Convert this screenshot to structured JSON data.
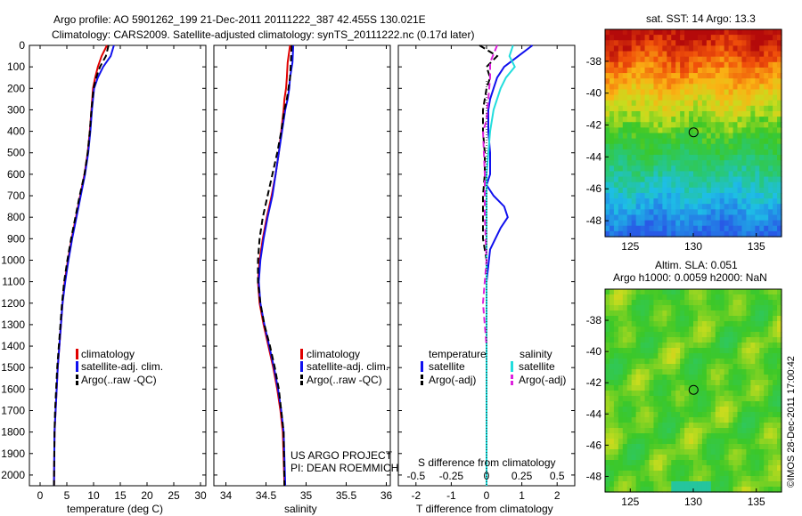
{
  "header": {
    "line1": "Argo profile: AO 5901262_199 21-Dec-2011 20111222_387 42.455S 130.021E",
    "line2": "Climatology: CARS2009. Satellite-adjusted climatology: synTS_20111222.nc (0.17d later)"
  },
  "colors": {
    "climatology": "#e00000",
    "satellite": "#1010ee",
    "argo": "#000000",
    "sal_satellite": "#22dddd",
    "sal_argo": "#dd22dd"
  },
  "y_axis": {
    "ylim": [
      0,
      2050
    ],
    "ticks": [
      0,
      100,
      200,
      300,
      400,
      500,
      600,
      700,
      800,
      900,
      1000,
      1100,
      1200,
      1300,
      1400,
      1500,
      1600,
      1700,
      1800,
      1900,
      2000
    ]
  },
  "panel1": {
    "xlabel": "temperature (deg C)",
    "xlim": [
      -2,
      31
    ],
    "xticks": [
      0,
      5,
      10,
      15,
      20,
      25,
      30
    ],
    "legend": [
      "climatology",
      "satellite-adj. clim.",
      "Argo(..raw -QC)"
    ]
  },
  "panel2": {
    "xlabel": "salinity",
    "xlim": [
      33.85,
      36.05
    ],
    "xticks": [
      "34",
      "34.5",
      "35",
      "35.5",
      "36"
    ],
    "legend": [
      "climatology",
      "satellite-adj. clim.",
      "Argo(..raw -QC)"
    ],
    "note1": "US ARGO PROJECT",
    "note2": "PI: DEAN ROEMMICH"
  },
  "panel3": {
    "xlabel": "T difference from climatology",
    "xlim": [
      -2.5,
      2.5
    ],
    "xticks": [
      "-2",
      "-1",
      "0",
      "1",
      "2"
    ],
    "top_label": "S difference from climatology",
    "top_ticks": [
      "-0.5",
      "-0.25",
      "0",
      "0.25",
      "0.5"
    ],
    "legend_temp_title": "temperature",
    "legend_sal_title": "salinity",
    "legend_temp": [
      "satellite",
      "Argo(-adj)"
    ],
    "legend_sal": [
      "satellite",
      "Argo(-adj)"
    ]
  },
  "map1": {
    "title": "sat. SST: 14 Argo: 13.3",
    "yticks": [
      "-38",
      "-40",
      "-42",
      "-44",
      "-46",
      "-48"
    ],
    "xticks": [
      "125",
      "130",
      "135"
    ],
    "marker": {
      "lon": 130.021,
      "lat": -42.455
    },
    "lon_range": [
      123,
      137
    ],
    "lat_range": [
      -49,
      -36
    ]
  },
  "map2": {
    "title1": "Altim. SLA: 0.051",
    "title2": "Argo h1000: 0.0059 h2000: NaN",
    "yticks": [
      "-38",
      "-40",
      "-42",
      "-44",
      "-46",
      "-48"
    ],
    "xticks": [
      "125",
      "130",
      "135"
    ],
    "marker": {
      "lon": 130.021,
      "lat": -42.455
    },
    "lon_range": [
      123,
      137
    ],
    "lat_range": [
      -49,
      -36
    ]
  },
  "stamp": "©IMOS 28-Dec-2011 17:00:42",
  "chart_data": [
    {
      "type": "line",
      "title": "",
      "xlabel": "temperature (deg C)",
      "ylabel": "",
      "xlim": [
        -2,
        31
      ],
      "ylim": [
        0,
        2050
      ],
      "series": [
        {
          "name": "climatology",
          "x": [
            12.5,
            11.5,
            10.8,
            10.3,
            9.9,
            9.6,
            9.3,
            8.9,
            8.3,
            7.5,
            6.7,
            5.9,
            5.2,
            4.6,
            4.2,
            3.9,
            3.6,
            3.3,
            3.1,
            2.9,
            2.7,
            2.6
          ],
          "y": [
            0,
            50,
            100,
            150,
            200,
            300,
            400,
            500,
            600,
            700,
            800,
            900,
            1000,
            1100,
            1200,
            1300,
            1400,
            1500,
            1600,
            1700,
            1800,
            2050
          ]
        },
        {
          "name": "satellite-adj. clim.",
          "x": [
            13.8,
            13.2,
            11.8,
            10.8,
            10.1,
            9.7,
            9.4,
            9.0,
            8.4,
            7.6,
            6.8,
            6.0,
            5.3,
            4.7,
            4.2,
            3.9,
            3.6,
            3.3,
            3.1,
            2.9,
            2.7,
            2.6
          ],
          "y": [
            0,
            50,
            100,
            150,
            200,
            300,
            400,
            500,
            600,
            700,
            800,
            900,
            1000,
            1100,
            1200,
            1300,
            1400,
            1500,
            1600,
            1700,
            1800,
            2050
          ]
        },
        {
          "name": "Argo(..raw -QC)",
          "x": [
            12.8,
            12.3,
            11.2,
            10.5,
            10.0,
            9.6,
            9.3,
            8.9,
            8.3,
            7.4,
            6.6,
            5.8,
            5.1,
            4.5,
            4.1,
            3.8,
            3.5,
            3.2,
            3.0,
            2.8,
            2.7,
            2.6
          ],
          "y": [
            0,
            50,
            100,
            150,
            200,
            300,
            400,
            500,
            600,
            700,
            800,
            900,
            1000,
            1100,
            1200,
            1300,
            1400,
            1500,
            1600,
            1700,
            1800,
            2050
          ]
        }
      ]
    },
    {
      "type": "line",
      "title": "",
      "xlabel": "salinity",
      "ylabel": "",
      "xlim": [
        33.85,
        36.05
      ],
      "ylim": [
        0,
        2050
      ],
      "series": [
        {
          "name": "climatology",
          "x": [
            34.8,
            34.77,
            34.76,
            34.75,
            34.73,
            34.72,
            34.69,
            34.66,
            34.62,
            34.57,
            34.51,
            34.46,
            34.42,
            34.4,
            34.42,
            34.47,
            34.53,
            34.59,
            34.64,
            34.68,
            34.71,
            34.73
          ],
          "y": [
            0,
            80,
            150,
            200,
            250,
            300,
            400,
            500,
            600,
            700,
            800,
            900,
            1000,
            1100,
            1200,
            1300,
            1400,
            1500,
            1600,
            1700,
            1800,
            2050
          ]
        },
        {
          "name": "satellite-adj. clim.",
          "x": [
            34.84,
            34.83,
            34.8,
            34.79,
            34.77,
            34.74,
            34.7,
            34.66,
            34.62,
            34.58,
            34.52,
            34.47,
            34.43,
            34.41,
            34.43,
            34.48,
            34.54,
            34.6,
            34.65,
            34.69,
            34.72,
            34.74
          ],
          "y": [
            0,
            80,
            150,
            200,
            250,
            300,
            400,
            500,
            600,
            700,
            800,
            900,
            1000,
            1100,
            1200,
            1300,
            1400,
            1500,
            1600,
            1700,
            1800,
            2050
          ]
        },
        {
          "name": "Argo(..raw -QC)",
          "x": [
            34.82,
            34.81,
            34.8,
            34.78,
            34.76,
            34.73,
            34.69,
            34.64,
            34.58,
            34.52,
            34.46,
            34.42,
            34.4,
            34.4,
            34.43,
            34.48,
            34.55,
            34.61,
            34.66,
            34.69,
            34.72,
            34.73
          ],
          "y": [
            0,
            80,
            150,
            200,
            250,
            300,
            400,
            500,
            600,
            700,
            800,
            900,
            1000,
            1100,
            1200,
            1300,
            1400,
            1500,
            1600,
            1700,
            1800,
            2050
          ]
        }
      ]
    },
    {
      "type": "line",
      "title": "",
      "xlabel": "T difference from climatology",
      "ylabel": "",
      "xlim": [
        -2.5,
        2.5
      ],
      "ylim": [
        0,
        2050
      ],
      "series": [
        {
          "name": "satellite",
          "x": [
            1.3,
            0.9,
            0.5,
            0.3,
            0.2,
            0.1,
            0.05,
            0.05,
            0.1,
            0.1,
            0.0,
            0.2,
            0.5,
            0.6,
            0.4,
            0.1,
            0.0,
            0.0,
            0.0,
            0.0,
            0.0
          ],
          "y": [
            0,
            50,
            100,
            150,
            200,
            250,
            300,
            400,
            500,
            600,
            650,
            700,
            750,
            800,
            850,
            950,
            1100,
            1300,
            1500,
            1800,
            2050
          ]
        },
        {
          "name": "Argo(-adj)",
          "x": [
            -0.2,
            0.3,
            0.0,
            0.1,
            0.0,
            -0.1,
            -0.1,
            -0.05,
            -0.05,
            -0.1,
            -0.1,
            -0.1,
            0.0,
            0.0,
            0.0
          ],
          "y": [
            0,
            50,
            100,
            150,
            200,
            300,
            400,
            500,
            600,
            700,
            800,
            900,
            1000,
            1200,
            1400
          ]
        },
        {
          "name": "salinity satellite",
          "x": [
            0.75,
            0.65,
            0.8,
            0.55,
            0.4,
            0.2,
            0.1,
            0.0,
            0.0,
            0.0
          ],
          "y": [
            0,
            50,
            100,
            150,
            200,
            300,
            400,
            600,
            1000,
            2050
          ]
        },
        {
          "name": "salinity Argo(-adj)",
          "x": [
            0.3,
            0.1,
            0.1,
            0.05,
            0.0,
            -0.1,
            -0.05,
            -0.05,
            0.0,
            -0.1,
            0.0
          ],
          "y": [
            0,
            80,
            150,
            250,
            350,
            400,
            600,
            800,
            1000,
            1200,
            1400
          ]
        }
      ]
    }
  ]
}
